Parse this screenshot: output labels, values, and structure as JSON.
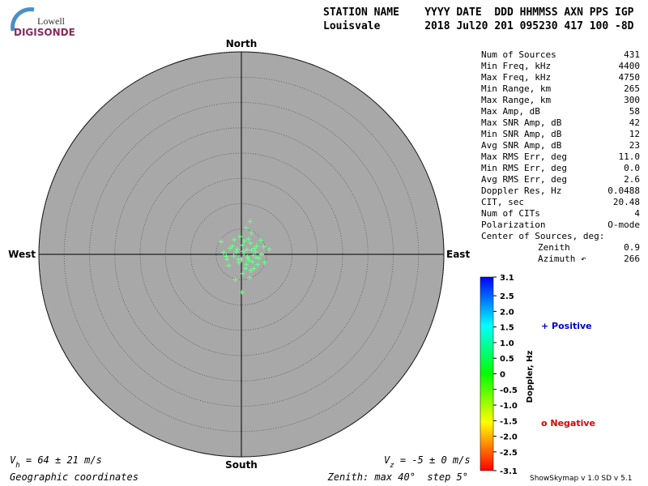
{
  "logo": {
    "top": "Lowell",
    "bottom": "DIGISONDE"
  },
  "header": {
    "line1": "STATION NAME    YYYY DATE  DDD HHMMSS AXN PPS IGP",
    "line2": "Louisvale       2018 Jul20 201 095230 417 100 -8D"
  },
  "stats": [
    [
      "Num of Sources",
      "431"
    ],
    [
      "Min Freq, kHz",
      "4400"
    ],
    [
      "Max Freq, kHz",
      "4750"
    ],
    [
      "Min Range, km",
      "265"
    ],
    [
      "Max Range, km",
      "300"
    ],
    [
      "Max Amp, dB",
      "58"
    ],
    [
      "Max SNR Amp, dB",
      "42"
    ],
    [
      "Min SNR Amp, dB",
      "12"
    ],
    [
      "Avg SNR Amp, dB",
      "23"
    ],
    [
      "Max RMS Err, deg",
      "11.0"
    ],
    [
      "Min RMS Err, deg",
      "0.0"
    ],
    [
      "Avg RMS Err, deg",
      "2.6"
    ],
    [
      "Doppler Res, Hz",
      "0.0488"
    ],
    [
      "CIT, sec",
      "20.48"
    ],
    [
      "Num of CITs",
      "4"
    ],
    [
      "Polarization",
      "O-mode"
    ]
  ],
  "center_label": "Center of Sources, deg:",
  "center_rows": [
    [
      "Zenith",
      "0.9"
    ],
    [
      "Azimuth ↶",
      "266"
    ]
  ],
  "chart_data": {
    "type": "skymap",
    "directions": {
      "north": "North",
      "south": "South",
      "east": "East",
      "west": "West"
    },
    "xlim": [
      -40,
      40
    ],
    "ylim": [
      -40,
      40
    ],
    "rticks": [
      5,
      10,
      15,
      20,
      25,
      30,
      35,
      40
    ],
    "face": "#a8a8a8",
    "color": "#66ff88",
    "x": [
      0.5,
      1.2,
      -0.8,
      2.0,
      1.5,
      -1.5,
      0.2,
      2.8,
      3.5,
      -2.2,
      1.0,
      0,
      1.8,
      -0.5,
      2.4,
      3.0,
      -1.0,
      0.8,
      1.4,
      2.2,
      -2.8,
      4.0,
      -3.5,
      0.6,
      1.9,
      2.6,
      -1.8,
      0.3,
      1.1,
      3.2,
      -0.3,
      2.0,
      -4.0,
      5.5,
      4.6,
      -2.5,
      1.6,
      0.9,
      -1.2,
      2.9,
      3.8,
      -0.6,
      1.3,
      0.4,
      -3.0,
      2.5,
      -1.4,
      4.4,
      0.1,
      1.7
    ],
    "y": [
      0.2,
      -0.5,
      1.0,
      0.8,
      -1.2,
      -0.3,
      1.8,
      0.5,
      -0.8,
      1.2,
      -2.0,
      -1.0,
      2.2,
      -1.6,
      -0.2,
      1.6,
      0.5,
      -2.8,
      3.0,
      -1.5,
      -1.0,
      0,
      0.4,
      2.6,
      -3.2,
      1.2,
      1.6,
      -3.8,
      0.9,
      -2.0,
      3.5,
      4.2,
      2.5,
      1.0,
      -1.6,
      -2.2,
      -4.6,
      5.2,
      -5.0,
      -0.6,
      2.8,
      -1.0,
      -0.8,
      0.6,
      -0.4,
      -2.8,
      2.9,
      1.5,
      -7.5,
      6.5
    ],
    "colorbar": {
      "label": "Doppler, Hz",
      "ylim": [
        -3.1,
        3.1
      ],
      "yticks": [
        3.1,
        2.5,
        {
          "value": 2,
          "label": "2.0"
        },
        1.5,
        {
          "value": 1,
          "label": "1.0"
        },
        0.5,
        0,
        -0.5,
        {
          "value": -1,
          "label": "-1.0"
        },
        -1.5,
        {
          "value": -2,
          "label": "-2.0"
        },
        -2.5,
        -3.1
      ],
      "colors": [
        "#0000ff",
        "#00ffff",
        "#00ff00",
        "#ffff00",
        "#ff0000"
      ]
    },
    "legend": {
      "positive": "+ Positive",
      "negative": "o Negative"
    },
    "vh": {
      "symbol": "V",
      "sub": "h",
      "rest": " = 64 ± 21 m/s"
    },
    "vz": {
      "symbol": "V",
      "sub": "z",
      "rest": " = -5 ± 0 m/s"
    },
    "coords": "Geographic coordinates",
    "zenith_note": "Zenith: max 40°  step 5°"
  },
  "footer": "ShowSkymap v 1.0  SD v 5.1"
}
